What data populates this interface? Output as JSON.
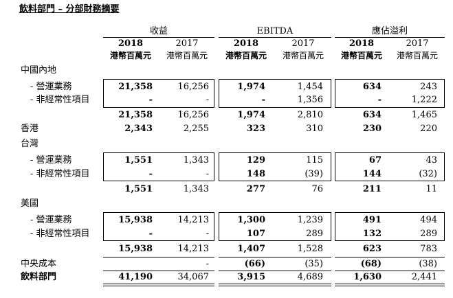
{
  "title": "飲料部門 – 分部財務摘要",
  "groups": {
    "revenue": "收益",
    "ebitda": "EBITDA",
    "profit": "應佔溢利"
  },
  "years": {
    "y2018": "2018",
    "y2017": "2017"
  },
  "unit": "港幣百萬元",
  "sections": {
    "china": "中國內地",
    "hongkong": "香港",
    "taiwan": "台灣",
    "usa": "美國",
    "central": "中央成本",
    "total": "飲料部門"
  },
  "sublabels": {
    "operating": "- 營運業務",
    "nonrecurring": "- 非經常性項目"
  },
  "rows": {
    "cn_op": [
      "21,358",
      "16,256",
      "1,974",
      "1,454",
      "634",
      "243"
    ],
    "cn_nr": [
      "-",
      "-",
      "-",
      "1,356",
      "-",
      "1,222"
    ],
    "cn_sub": [
      "21,358",
      "16,256",
      "1,974",
      "2,810",
      "634",
      "1,465"
    ],
    "hk": [
      "2,343",
      "2,255",
      "323",
      "310",
      "230",
      "220"
    ],
    "tw_op": [
      "1,551",
      "1,343",
      "129",
      "115",
      "67",
      "43"
    ],
    "tw_nr": [
      "-",
      "-",
      "148",
      "(39)",
      "144",
      "(32)"
    ],
    "tw_sub": [
      "1,551",
      "1,343",
      "277",
      "76",
      "211",
      "11"
    ],
    "us_op": [
      "15,938",
      "14,213",
      "1,300",
      "1,239",
      "491",
      "494"
    ],
    "us_nr": [
      "-",
      "-",
      "107",
      "289",
      "132",
      "289"
    ],
    "us_sub": [
      "15,938",
      "14,213",
      "1,407",
      "1,528",
      "623",
      "783"
    ],
    "central": [
      "",
      "-",
      "(66)",
      "(35)",
      "(68)",
      "(38)"
    ],
    "total": [
      "41,190",
      "34,067",
      "3,915",
      "4,689",
      "1,630",
      "2,441"
    ]
  }
}
